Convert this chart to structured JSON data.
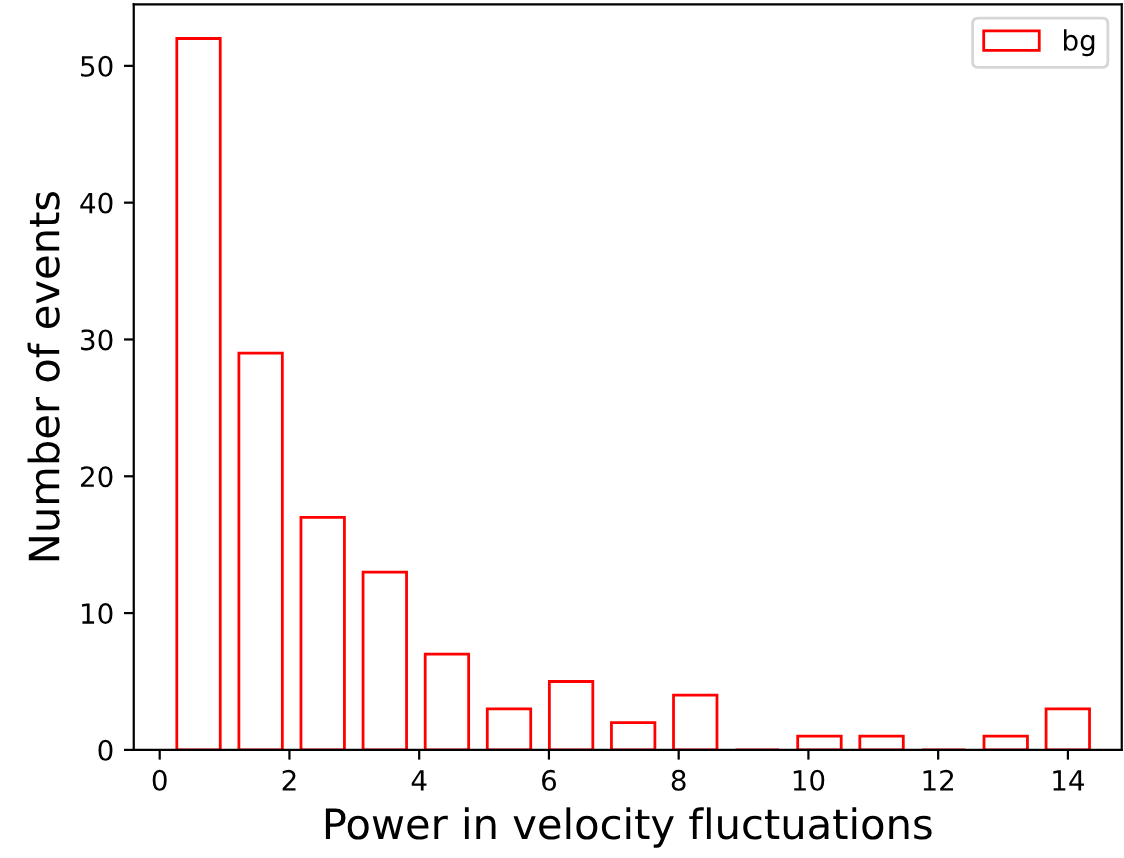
{
  "chart_data": {
    "type": "histogram",
    "xlabel": "Power in velocity fluctuations",
    "ylabel": "Number of events",
    "bins": [
      0.12,
      1.077,
      2.034,
      2.991,
      3.949,
      4.906,
      5.863,
      6.82,
      7.777,
      8.734,
      9.691,
      10.649,
      11.606,
      12.563,
      13.52,
      14.477
    ],
    "series": [
      {
        "name": "bg",
        "color": "#ff0000",
        "values": [
          52,
          29,
          17,
          13,
          7,
          3,
          5,
          2,
          4,
          0,
          1,
          1,
          0,
          1,
          3
        ]
      }
    ],
    "xlim": [
      -0.4,
      14.83
    ],
    "ylim": [
      0,
      54.5
    ],
    "xticks": [
      0,
      2,
      4,
      6,
      8,
      10,
      12,
      14
    ],
    "yticks": [
      0,
      10,
      20,
      30,
      40,
      50
    ],
    "legend": "top right",
    "grid": false
  }
}
